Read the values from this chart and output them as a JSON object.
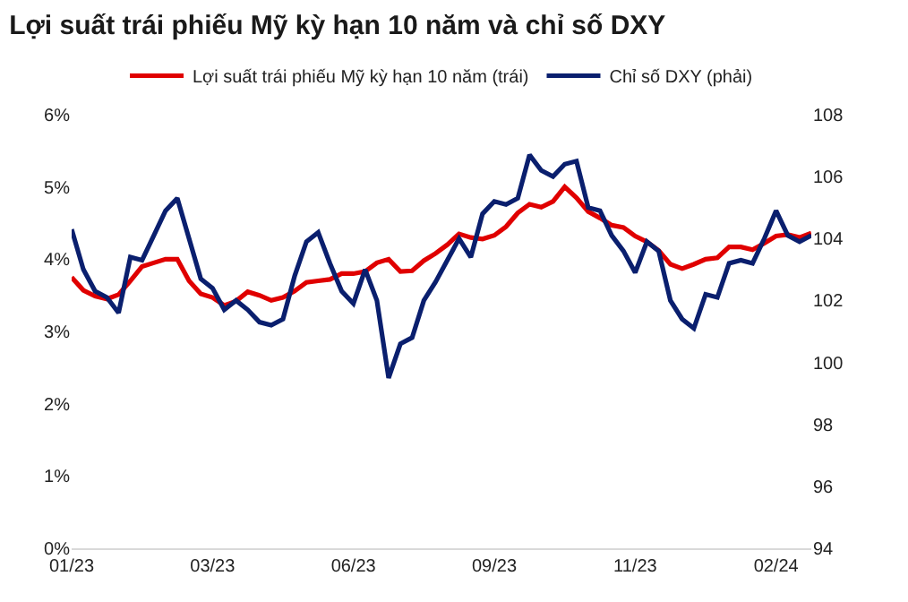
{
  "chart_data": {
    "type": "line",
    "title": "Lợi suất trái phiếu Mỹ kỳ hạn 10 năm và chỉ số DXY",
    "categories": [
      "01/23",
      null,
      null,
      null,
      null,
      null,
      null,
      null,
      null,
      null,
      null,
      null,
      "03/23",
      null,
      null,
      null,
      null,
      null,
      null,
      null,
      null,
      null,
      null,
      null,
      "06/23",
      null,
      null,
      null,
      null,
      null,
      null,
      null,
      null,
      null,
      null,
      null,
      "09/23",
      null,
      null,
      null,
      null,
      null,
      null,
      null,
      null,
      null,
      null,
      null,
      "11/23",
      null,
      null,
      null,
      null,
      null,
      null,
      null,
      null,
      null,
      null,
      null,
      "02/24",
      null,
      null,
      null
    ],
    "ylim": [
      0,
      6
    ],
    "yticks": [
      {
        "value": 0,
        "label": "0%"
      },
      {
        "value": 1,
        "label": "1%"
      },
      {
        "value": 2,
        "label": "2%"
      },
      {
        "value": 3,
        "label": "3%"
      },
      {
        "value": 4,
        "label": "4%"
      },
      {
        "value": 5,
        "label": "5%"
      },
      {
        "value": 6,
        "label": "6%"
      }
    ],
    "y2lim": [
      94,
      108
    ],
    "y2ticks": [
      94,
      96,
      98,
      100,
      102,
      104,
      106,
      108
    ],
    "legend": "top",
    "marker": "none",
    "line_style": "solid",
    "series": [
      {
        "name": "Lợi suất trái phiếu Mỹ kỳ hạn 10 năm (trái)",
        "color": "#e00000",
        "values": [
          3.75,
          3.57,
          3.49,
          3.45,
          3.51,
          3.7,
          3.9,
          3.95,
          4.0,
          4.0,
          3.7,
          3.52,
          3.47,
          3.36,
          3.42,
          3.55,
          3.5,
          3.43,
          3.47,
          3.56,
          3.68,
          3.7,
          3.72,
          3.8,
          3.8,
          3.83,
          3.95,
          4.0,
          3.83,
          3.84,
          3.98,
          4.08,
          4.2,
          4.35,
          4.3,
          4.28,
          4.33,
          4.45,
          4.64,
          4.76,
          4.72,
          4.8,
          5.0,
          4.85,
          4.66,
          4.57,
          4.47,
          4.44,
          4.32,
          4.24,
          4.12,
          3.93,
          3.87,
          3.93,
          4.0,
          4.02,
          4.17,
          4.17,
          4.13,
          4.22,
          4.32,
          4.34,
          4.3,
          4.36
        ]
      },
      {
        "name": "Chỉ số DXY (phải)",
        "color": "#0a1f6e",
        "axis": "y2",
        "values": [
          104.3,
          103.0,
          102.3,
          102.1,
          101.6,
          103.4,
          103.3,
          104.1,
          104.9,
          105.3,
          104.0,
          102.7,
          102.4,
          101.7,
          102.0,
          101.7,
          101.3,
          101.2,
          101.4,
          102.8,
          103.9,
          104.2,
          103.2,
          102.3,
          101.9,
          103.0,
          102.0,
          99.5,
          100.6,
          100.8,
          102.0,
          102.6,
          103.3,
          104.0,
          103.4,
          104.8,
          105.2,
          105.1,
          105.3,
          106.7,
          106.2,
          106.0,
          106.4,
          106.5,
          105.0,
          104.9,
          104.1,
          103.6,
          102.9,
          103.9,
          103.6,
          102.0,
          101.4,
          101.1,
          102.2,
          102.1,
          103.2,
          103.3,
          103.2,
          104.0,
          104.9,
          104.1,
          103.9,
          104.1
        ]
      }
    ]
  }
}
